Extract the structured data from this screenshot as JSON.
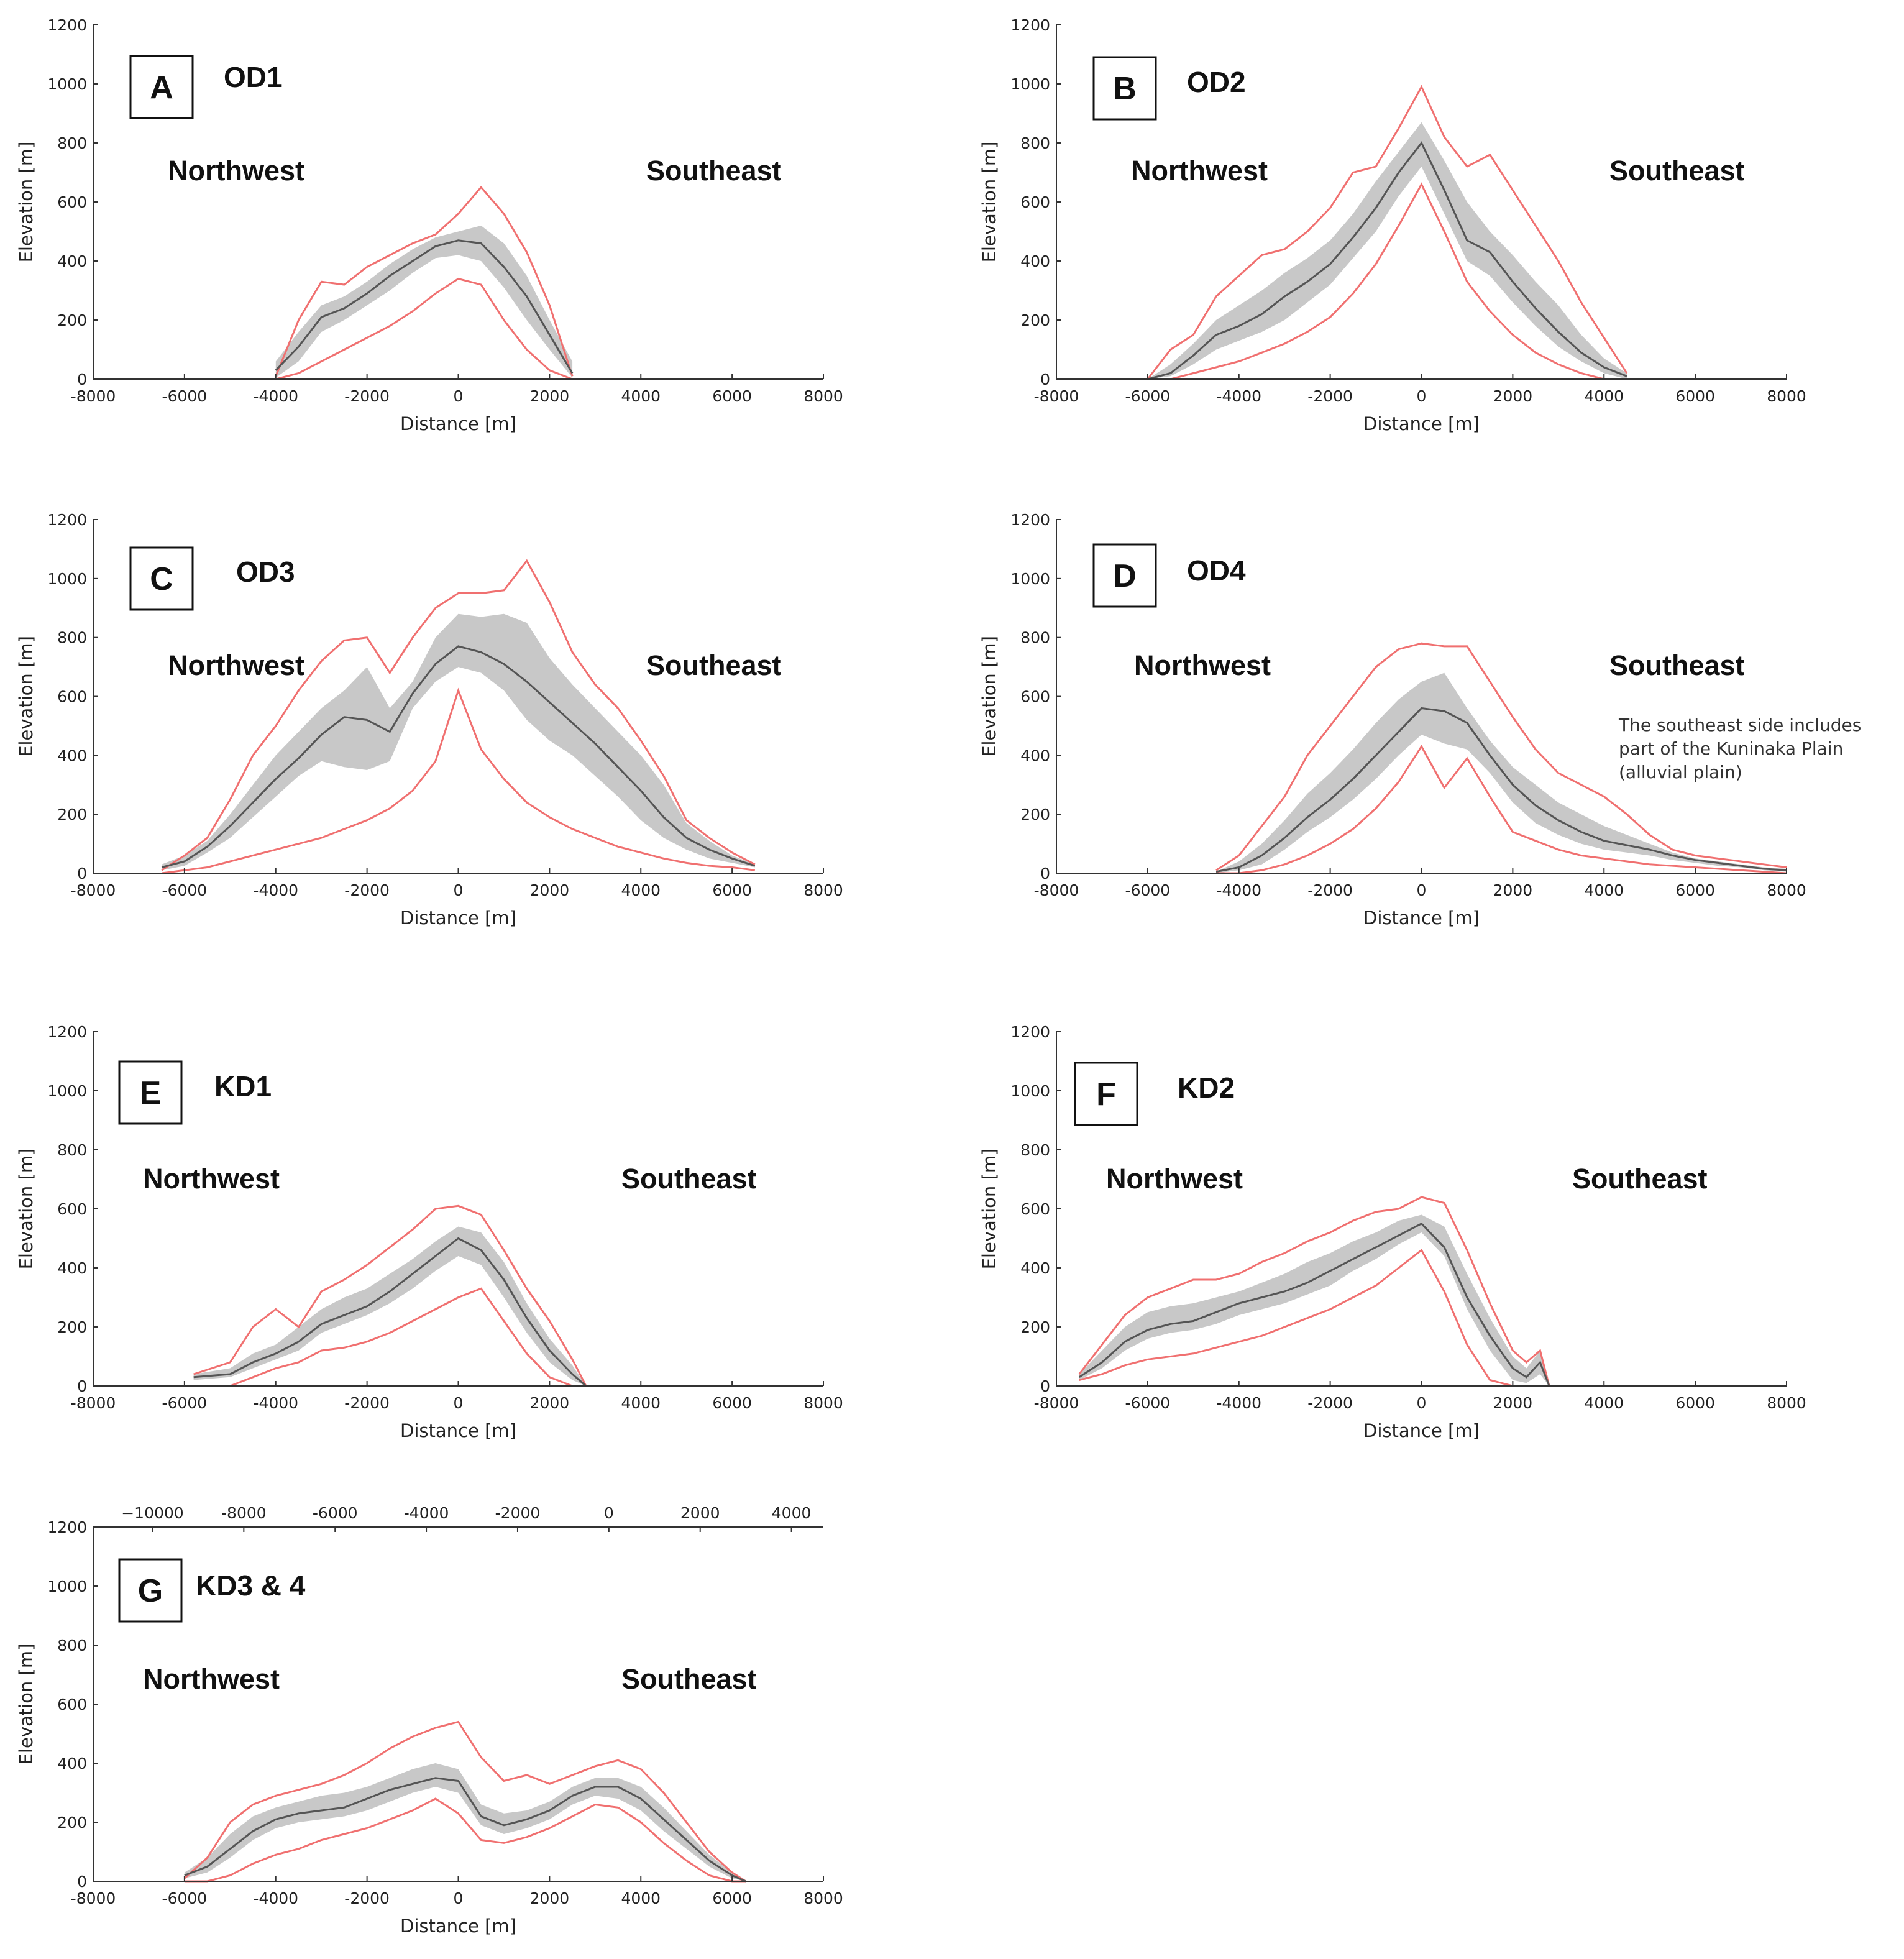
{
  "chart_data": [
    {
      "type": "area",
      "panel": "A",
      "title": "OD1",
      "direction_left": "Northwest",
      "direction_right": "Southeast",
      "xlabel": "Distance [m]",
      "ylabel": "Elevation [m]",
      "xlim": [
        -8000,
        8000
      ],
      "ylim": [
        0,
        1200
      ],
      "xticks": [
        "-8000",
        "-6000",
        "-4000",
        "-2000",
        "0",
        "2000",
        "4000",
        "6000",
        "8000"
      ],
      "yticks": [
        "0",
        "200",
        "400",
        "600",
        "800",
        "1000",
        "1200"
      ],
      "x": [
        -4000,
        -3500,
        -3000,
        -2500,
        -2000,
        -1500,
        -1000,
        -500,
        0,
        500,
        1000,
        1500,
        2000,
        2500
      ],
      "max": [
        10,
        200,
        330,
        320,
        380,
        420,
        460,
        490,
        560,
        650,
        560,
        430,
        250,
        10
      ],
      "upper": [
        60,
        160,
        250,
        280,
        330,
        390,
        440,
        480,
        500,
        520,
        460,
        350,
        200,
        60
      ],
      "mean": [
        30,
        110,
        210,
        240,
        290,
        350,
        400,
        450,
        470,
        460,
        380,
        280,
        150,
        20
      ],
      "lower": [
        5,
        60,
        160,
        200,
        250,
        300,
        360,
        410,
        420,
        400,
        310,
        200,
        100,
        5
      ],
      "min": [
        0,
        20,
        60,
        100,
        140,
        180,
        230,
        290,
        340,
        320,
        200,
        100,
        30,
        0
      ]
    },
    {
      "type": "area",
      "panel": "B",
      "title": "OD2",
      "direction_left": "Northwest",
      "direction_right": "Southeast",
      "xlabel": "Distance [m]",
      "ylabel": "Elevation [m]",
      "xlim": [
        -8000,
        8000
      ],
      "ylim": [
        0,
        1200
      ],
      "xticks": [
        "-8000",
        "-6000",
        "-4000",
        "-2000",
        "0",
        "2000",
        "4000",
        "6000",
        "8000"
      ],
      "yticks": [
        "0",
        "200",
        "400",
        "600",
        "800",
        "1000",
        "1200"
      ],
      "x": [
        -6000,
        -5500,
        -5000,
        -4500,
        -4000,
        -3500,
        -3000,
        -2500,
        -2000,
        -1500,
        -1000,
        -500,
        0,
        500,
        1000,
        1500,
        2000,
        2500,
        3000,
        3500,
        4000,
        4500
      ],
      "max": [
        0,
        100,
        150,
        280,
        350,
        420,
        440,
        500,
        580,
        700,
        720,
        850,
        990,
        820,
        720,
        760,
        640,
        520,
        400,
        260,
        140,
        20
      ],
      "upper": [
        0,
        50,
        120,
        200,
        250,
        300,
        360,
        410,
        470,
        560,
        670,
        770,
        870,
        740,
        600,
        500,
        420,
        330,
        250,
        150,
        70,
        20
      ],
      "mean": [
        0,
        20,
        80,
        150,
        180,
        220,
        280,
        330,
        390,
        480,
        580,
        700,
        800,
        640,
        470,
        430,
        330,
        240,
        160,
        90,
        40,
        10
      ],
      "lower": [
        0,
        10,
        50,
        100,
        130,
        160,
        200,
        260,
        320,
        410,
        500,
        620,
        720,
        560,
        400,
        350,
        260,
        180,
        110,
        60,
        20,
        0
      ],
      "min": [
        0,
        0,
        20,
        40,
        60,
        90,
        120,
        160,
        210,
        290,
        390,
        520,
        660,
        500,
        330,
        230,
        150,
        90,
        50,
        20,
        0,
        0
      ]
    },
    {
      "type": "area",
      "panel": "C",
      "title": "OD3",
      "direction_left": "Northwest",
      "direction_right": "Southeast",
      "xlabel": "Distance [m]",
      "ylabel": "Elevation [m]",
      "xlim": [
        -8000,
        8000
      ],
      "ylim": [
        0,
        1200
      ],
      "xticks": [
        "-8000",
        "-6000",
        "-4000",
        "-2000",
        "0",
        "2000",
        "4000",
        "6000",
        "8000"
      ],
      "yticks": [
        "0",
        "200",
        "400",
        "600",
        "800",
        "1000",
        "1200"
      ],
      "x": [
        -6500,
        -6000,
        -5500,
        -5000,
        -4500,
        -4000,
        -3500,
        -3000,
        -2500,
        -2000,
        -1500,
        -1000,
        -500,
        0,
        500,
        1000,
        1500,
        2000,
        2500,
        3000,
        3500,
        4000,
        4500,
        5000,
        5500,
        6000,
        6500
      ],
      "max": [
        10,
        60,
        120,
        250,
        400,
        500,
        620,
        720,
        790,
        800,
        680,
        800,
        900,
        950,
        950,
        960,
        1060,
        920,
        750,
        640,
        560,
        450,
        330,
        180,
        120,
        70,
        30
      ],
      "upper": [
        30,
        60,
        110,
        200,
        300,
        400,
        480,
        560,
        620,
        700,
        560,
        650,
        800,
        880,
        870,
        880,
        850,
        730,
        640,
        560,
        480,
        400,
        300,
        170,
        110,
        60,
        30
      ],
      "mean": [
        20,
        40,
        90,
        160,
        240,
        320,
        390,
        470,
        530,
        520,
        480,
        610,
        710,
        770,
        750,
        710,
        650,
        580,
        510,
        440,
        360,
        280,
        190,
        120,
        80,
        50,
        25
      ],
      "lower": [
        10,
        25,
        70,
        120,
        190,
        260,
        330,
        380,
        360,
        350,
        380,
        560,
        650,
        700,
        680,
        620,
        520,
        450,
        400,
        330,
        260,
        180,
        120,
        80,
        50,
        35,
        20
      ],
      "min": [
        0,
        10,
        20,
        40,
        60,
        80,
        100,
        120,
        150,
        180,
        220,
        280,
        380,
        620,
        420,
        320,
        240,
        190,
        150,
        120,
        90,
        70,
        50,
        35,
        25,
        20,
        10
      ]
    },
    {
      "type": "area",
      "panel": "D",
      "title": "OD4",
      "direction_left": "Northwest",
      "direction_right": "Southeast",
      "xlabel": "Distance [m]",
      "ylabel": "Elevation [m]",
      "annotation": [
        "The southeast side includes",
        "part of the Kuninaka Plain",
        "(alluvial plain)"
      ],
      "xlim": [
        -8000,
        8000
      ],
      "ylim": [
        0,
        1200
      ],
      "xticks": [
        "-8000",
        "-6000",
        "-4000",
        "-2000",
        "0",
        "2000",
        "4000",
        "6000",
        "8000"
      ],
      "yticks": [
        "0",
        "200",
        "400",
        "600",
        "800",
        "1000",
        "1200"
      ],
      "x": [
        -4500,
        -4000,
        -3500,
        -3000,
        -2500,
        -2000,
        -1500,
        -1000,
        -500,
        0,
        500,
        1000,
        1500,
        2000,
        2500,
        3000,
        3500,
        4000,
        4500,
        5000,
        5500,
        6000,
        6500,
        7000,
        7500,
        8000
      ],
      "max": [
        10,
        60,
        160,
        260,
        400,
        500,
        600,
        700,
        760,
        780,
        770,
        770,
        650,
        530,
        420,
        340,
        300,
        260,
        200,
        130,
        80,
        60,
        50,
        40,
        30,
        20
      ],
      "upper": [
        5,
        40,
        100,
        180,
        270,
        340,
        420,
        510,
        590,
        650,
        680,
        560,
        450,
        360,
        300,
        240,
        200,
        160,
        130,
        100,
        70,
        50,
        40,
        30,
        20,
        15
      ],
      "mean": [
        5,
        20,
        60,
        120,
        190,
        250,
        320,
        400,
        480,
        560,
        550,
        510,
        400,
        300,
        230,
        180,
        140,
        110,
        95,
        80,
        60,
        45,
        35,
        25,
        15,
        10
      ],
      "lower": [
        0,
        10,
        30,
        80,
        140,
        190,
        250,
        320,
        400,
        470,
        440,
        420,
        340,
        240,
        170,
        130,
        100,
        80,
        70,
        60,
        45,
        35,
        25,
        20,
        10,
        5
      ],
      "min": [
        0,
        0,
        10,
        30,
        60,
        100,
        150,
        220,
        310,
        430,
        290,
        390,
        260,
        140,
        110,
        80,
        60,
        50,
        40,
        30,
        25,
        20,
        15,
        10,
        5,
        0
      ]
    },
    {
      "type": "area",
      "panel": "E",
      "title": "KD1",
      "direction_left": "Northwest",
      "direction_right": "Southeast",
      "xlabel": "Distance [m]",
      "ylabel": "Elevation [m]",
      "xlim": [
        -8000,
        8000
      ],
      "ylim": [
        0,
        1200
      ],
      "xticks": [
        "-8000",
        "-6000",
        "-4000",
        "-2000",
        "0",
        "2000",
        "4000",
        "6000",
        "8000"
      ],
      "yticks": [
        "0",
        "200",
        "400",
        "600",
        "800",
        "1000",
        "1200"
      ],
      "x": [
        -5800,
        -5000,
        -4500,
        -4000,
        -3500,
        -3000,
        -2500,
        -2000,
        -1500,
        -1000,
        -500,
        0,
        500,
        1000,
        1500,
        2000,
        2500,
        2800
      ],
      "max": [
        40,
        80,
        200,
        260,
        200,
        320,
        360,
        410,
        470,
        530,
        600,
        610,
        580,
        460,
        330,
        220,
        90,
        0
      ],
      "upper": [
        40,
        60,
        110,
        140,
        200,
        260,
        300,
        330,
        380,
        430,
        490,
        540,
        520,
        420,
        280,
        160,
        70,
        0
      ],
      "mean": [
        30,
        40,
        80,
        110,
        150,
        210,
        240,
        270,
        320,
        380,
        440,
        500,
        460,
        360,
        230,
        120,
        40,
        0
      ],
      "lower": [
        20,
        30,
        60,
        90,
        120,
        180,
        210,
        240,
        280,
        330,
        390,
        440,
        410,
        300,
        180,
        80,
        20,
        0
      ],
      "min": [
        0,
        0,
        30,
        60,
        80,
        120,
        130,
        150,
        180,
        220,
        260,
        300,
        330,
        220,
        110,
        30,
        0,
        0
      ]
    },
    {
      "type": "area",
      "panel": "F",
      "title": "KD2",
      "direction_left": "Northwest",
      "direction_right": "Southeast",
      "xlabel": "Distance [m]",
      "ylabel": "Elevation [m]",
      "xlim": [
        -8000,
        8000
      ],
      "ylim": [
        0,
        1200
      ],
      "xticks": [
        "-8000",
        "-6000",
        "-4000",
        "-2000",
        "0",
        "2000",
        "4000",
        "6000",
        "8000"
      ],
      "yticks": [
        "0",
        "200",
        "400",
        "600",
        "800",
        "1000",
        "1200"
      ],
      "x": [
        -7500,
        -7000,
        -6500,
        -6000,
        -5500,
        -5000,
        -4500,
        -4000,
        -3500,
        -3000,
        -2500,
        -2000,
        -1500,
        -1000,
        -500,
        0,
        500,
        1000,
        1500,
        2000,
        2300,
        2600,
        2800
      ],
      "max": [
        40,
        140,
        240,
        300,
        330,
        360,
        360,
        380,
        420,
        450,
        490,
        520,
        560,
        590,
        600,
        640,
        620,
        460,
        280,
        120,
        80,
        120,
        0
      ],
      "upper": [
        40,
        120,
        200,
        250,
        270,
        280,
        300,
        320,
        350,
        380,
        420,
        450,
        490,
        520,
        560,
        580,
        540,
        380,
        230,
        100,
        60,
        120,
        0
      ],
      "mean": [
        30,
        80,
        150,
        190,
        210,
        220,
        250,
        280,
        300,
        320,
        350,
        390,
        430,
        470,
        510,
        550,
        470,
        300,
        170,
        60,
        30,
        80,
        0
      ],
      "lower": [
        20,
        60,
        120,
        160,
        180,
        190,
        210,
        240,
        260,
        280,
        310,
        340,
        390,
        430,
        480,
        520,
        440,
        260,
        120,
        20,
        10,
        40,
        0
      ],
      "min": [
        20,
        40,
        70,
        90,
        100,
        110,
        130,
        150,
        170,
        200,
        230,
        260,
        300,
        340,
        400,
        460,
        320,
        140,
        20,
        0,
        0,
        0,
        0
      ]
    },
    {
      "type": "area",
      "panel": "G",
      "title": "KD3 & 4",
      "direction_left": "Northwest",
      "direction_right": "Southeast",
      "xlabel": "Distance [m]",
      "ylabel": "Elevation [m]",
      "xlim": [
        -8000,
        8000
      ],
      "ylim": [
        0,
        1200
      ],
      "xticks": [
        "-8000",
        "-6000",
        "-4000",
        "-2000",
        "0",
        "2000",
        "4000",
        "6000",
        "8000"
      ],
      "yticks": [
        "0",
        "200",
        "400",
        "600",
        "800",
        "1000",
        "1200"
      ],
      "top_axis_ticks": [
        "−10000",
        "-8000",
        "-6000",
        "-4000",
        "-2000",
        "0",
        "2000",
        "4000"
      ],
      "top_axis_values": [
        -10000,
        -8000,
        -6000,
        -4000,
        -2000,
        0,
        2000,
        4000
      ],
      "top_axis_offset": 3300,
      "x": [
        -6000,
        -5500,
        -5000,
        -4500,
        -4000,
        -3500,
        -3000,
        -2500,
        -2000,
        -1500,
        -1000,
        -500,
        0,
        500,
        1000,
        1500,
        2000,
        2500,
        3000,
        3500,
        4000,
        4500,
        5000,
        5500,
        6000,
        6300
      ],
      "max": [
        10,
        80,
        200,
        260,
        290,
        310,
        330,
        360,
        400,
        450,
        490,
        520,
        540,
        420,
        340,
        360,
        330,
        360,
        390,
        410,
        380,
        300,
        200,
        100,
        30,
        0
      ],
      "upper": [
        30,
        80,
        160,
        220,
        250,
        270,
        290,
        300,
        320,
        350,
        380,
        400,
        380,
        260,
        230,
        240,
        270,
        320,
        350,
        350,
        320,
        250,
        170,
        90,
        30,
        0
      ],
      "mean": [
        20,
        50,
        110,
        170,
        210,
        230,
        240,
        250,
        280,
        310,
        330,
        350,
        340,
        220,
        190,
        210,
        240,
        290,
        320,
        320,
        280,
        210,
        140,
        70,
        20,
        0
      ],
      "lower": [
        10,
        30,
        80,
        140,
        180,
        200,
        210,
        220,
        240,
        270,
        300,
        320,
        300,
        190,
        160,
        180,
        210,
        260,
        290,
        280,
        240,
        170,
        110,
        50,
        10,
        0
      ],
      "min": [
        0,
        0,
        20,
        60,
        90,
        110,
        140,
        160,
        180,
        210,
        240,
        280,
        230,
        140,
        130,
        150,
        180,
        220,
        260,
        250,
        200,
        130,
        70,
        20,
        0,
        0
      ]
    }
  ]
}
